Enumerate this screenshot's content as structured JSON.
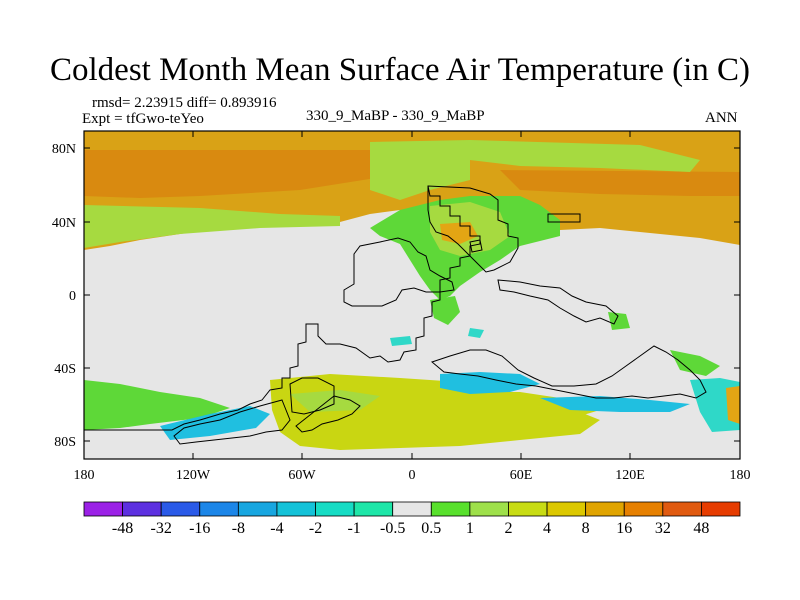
{
  "title": "Coldest Month Mean Surface Air Temperature (in C)",
  "stats": "rmsd= 2.23915 diff= 0.893916",
  "expt": "Expt = tfGwo-teYeo",
  "comparison": "330_9_MaBP - 330_9_MaBP",
  "period": "ANN",
  "lat_ticks": [
    "80N",
    "40N",
    "0",
    "40S",
    "80S"
  ],
  "lon_ticks": [
    "180",
    "120W",
    "60W",
    "0",
    "60E",
    "120E",
    "180"
  ],
  "colorbar": {
    "labels": [
      "-48",
      "-32",
      "-16",
      "-8",
      "-4",
      "-2",
      "-1",
      "-0.5",
      "0.5",
      "1",
      "2",
      "4",
      "8",
      "16",
      "32",
      "48"
    ],
    "colors": [
      "#9b21e6",
      "#5d30e0",
      "#2a5ae8",
      "#1c86e8",
      "#17a6e0",
      "#14c2d8",
      "#16dcc4",
      "#1ee6a8",
      "#e6e6e6",
      "#58e02c",
      "#9ee04a",
      "#c8dc14",
      "#dcc800",
      "#e0a400",
      "#e68000",
      "#e05a10",
      "#e63c00"
    ]
  },
  "colors": {
    "land": "#e6e6e6",
    "north_band": "#d9a216",
    "north_band_dark": "#d98a10",
    "positive_mild": "#a6da40",
    "positive_weak": "#5ed838",
    "negative_weak": "#2fd8c8",
    "negative_mid": "#20bfe0",
    "south_band": "#c9d612",
    "south_orange": "#e3a514"
  }
}
